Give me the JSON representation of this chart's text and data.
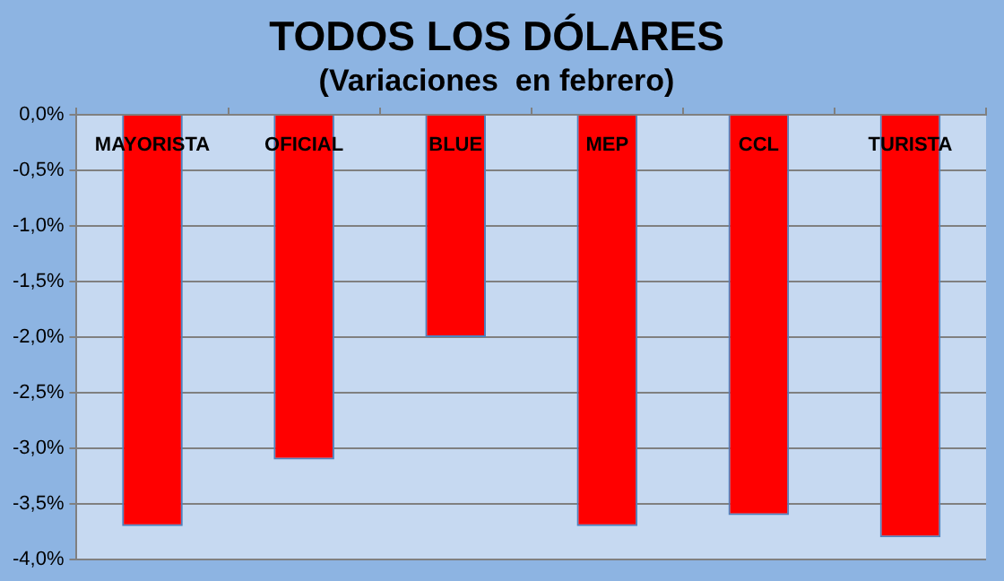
{
  "chart_data": {
    "type": "bar",
    "title": "TODOS LOS DÓLARES",
    "subtitle": "(Variaciones  en febrero)",
    "categories": [
      "MAYORISTA",
      "OFICIAL",
      "BLUE",
      "MEP",
      "CCL",
      "TURISTA"
    ],
    "values": [
      -3.7,
      -3.1,
      -2.0,
      -3.7,
      -3.6,
      -3.8
    ],
    "color": "#ff0000",
    "ylim": [
      -4,
      0
    ],
    "yticks": [
      {
        "value": 0,
        "label": "0,0%"
      },
      {
        "value": -0.5,
        "label": "-0,5%"
      },
      {
        "value": -1,
        "label": "-1,0%"
      },
      {
        "value": -1.5,
        "label": "-1,5%"
      },
      {
        "value": -2,
        "label": "-2,0%"
      },
      {
        "value": -2.5,
        "label": "-2,5%"
      },
      {
        "value": -3,
        "label": "-3,0%"
      },
      {
        "value": -3.5,
        "label": "-3,5%"
      },
      {
        "value": -4,
        "label": "-4,0%"
      }
    ],
    "grid": "y"
  }
}
